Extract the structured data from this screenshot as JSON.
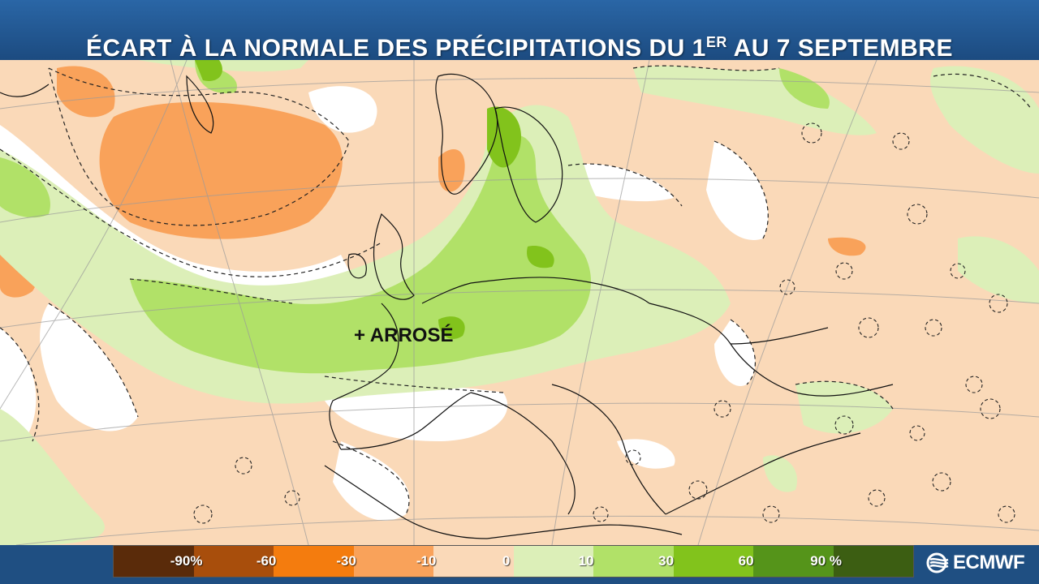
{
  "header": {
    "title_main": "ÉCART À LA NORMALE DES PRÉCIPITATIONS DU 1",
    "title_sup": "ER",
    "title_end": " AU 7 SEPTEMBRE"
  },
  "map": {
    "annotation": "+ ARROSÉ"
  },
  "legend": {
    "bins": [
      {
        "color": "#5a2b0a"
      },
      {
        "color": "#a84e0c"
      },
      {
        "color": "#f47c0e"
      },
      {
        "color": "#f9a25a"
      },
      {
        "color": "#fad9b8"
      },
      {
        "color": "#dcefb8"
      },
      {
        "color": "#b1e168"
      },
      {
        "color": "#82c31c"
      },
      {
        "color": "#55941a"
      },
      {
        "color": "#3c5e12"
      }
    ],
    "labels": [
      "-90%",
      "-60",
      "-30",
      "-10",
      "0",
      "10",
      "30",
      "60",
      "90 %"
    ]
  },
  "brand": {
    "name": "ECMWF",
    "icon": "ecmwf-logo-icon"
  }
}
